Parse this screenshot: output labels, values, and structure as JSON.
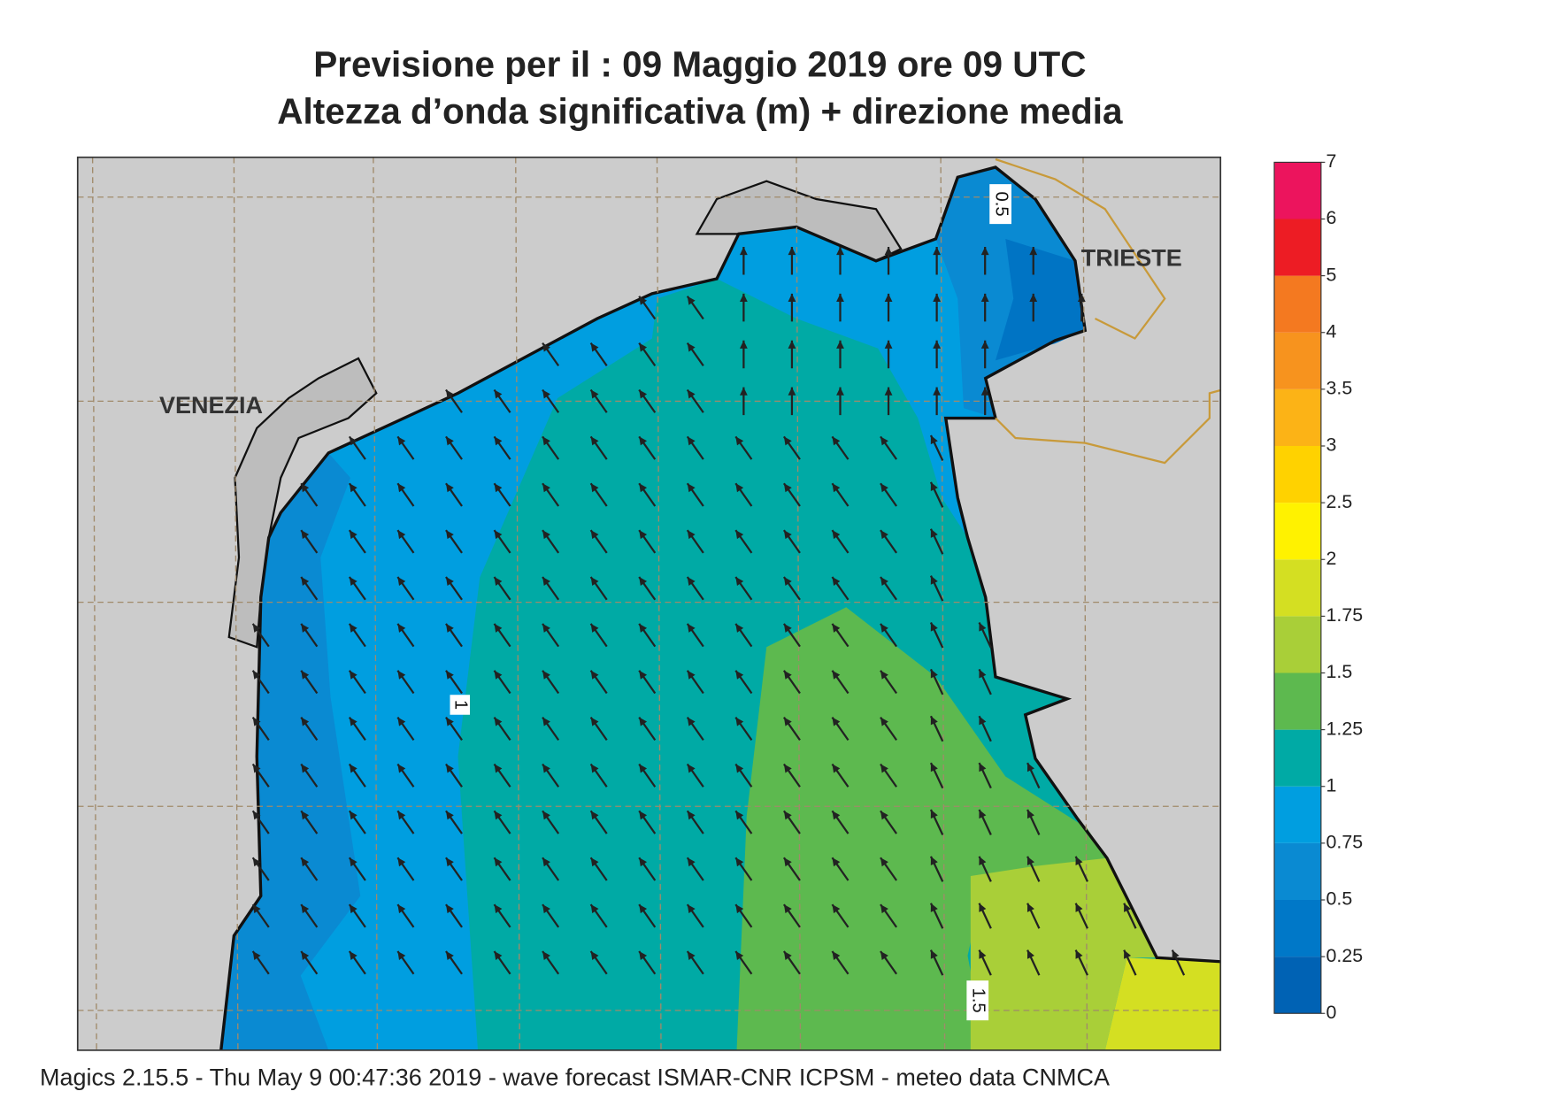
{
  "title": [
    "Previsione per il  :  09   Maggio  2019   ore 09 UTC",
    "Altezza d’onda significativa (m) + direzione media"
  ],
  "map": {
    "cities": [
      "VENEZIA",
      "TRIESTE"
    ],
    "contour_labels": [
      "0.5",
      "1",
      "1.5"
    ]
  },
  "legend": {
    "levels": [
      0,
      0.25,
      0.5,
      0.75,
      1,
      1.25,
      1.5,
      1.75,
      2,
      2.5,
      3,
      3.5,
      4,
      5,
      6,
      7
    ],
    "colors": [
      "#0062b4",
      "#0078c8",
      "#0a8ad2",
      "#009ee0",
      "#00aaa5",
      "#5db94f",
      "#a9cf38",
      "#d4df22",
      "#fff200",
      "#ffd200",
      "#fcb316",
      "#f7931e",
      "#f47920",
      "#ed1c24",
      "#ec145d"
    ]
  },
  "footer": "Magics 2.15.5 - Thu May  9 00:47:36 2019 - wave forecast  ISMAR-CNR  ICPSM - meteo data   CNMCA"
}
